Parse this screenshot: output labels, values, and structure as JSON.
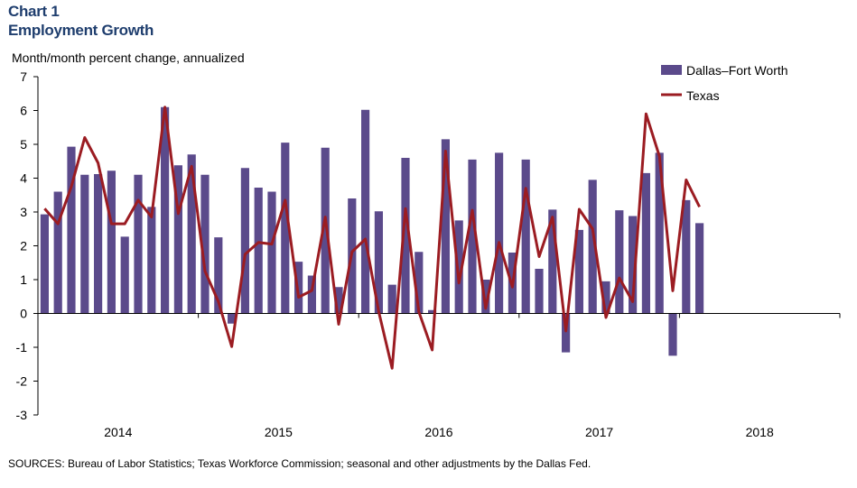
{
  "header": {
    "chart_label": "Chart 1",
    "title": "Employment Growth",
    "ylabel": "Month/month  percent change, annualized"
  },
  "footer": {
    "source": "SOURCES: Bureau of  Labor Statistics; Texas Workforce Commission; seasonal and other adjustments by the Dallas Fed."
  },
  "colors": {
    "bar": "#5b4a8b",
    "line": "#9b1c22",
    "axis": "#000000"
  },
  "chart_data": {
    "type": "bar",
    "title": "Employment Growth",
    "ylabel": "Month/month  percent change, annualized",
    "ylim": [
      -3,
      7
    ],
    "yticks": [
      -3,
      -2,
      -1,
      0,
      1,
      2,
      3,
      4,
      5,
      6,
      7
    ],
    "year_labels": [
      "2014",
      "2015",
      "2016",
      "2017",
      "2018"
    ],
    "months_total": 60,
    "legend_position": "top-right",
    "grid": false,
    "series": [
      {
        "name": "Dallas–Fort Worth",
        "kind": "bar",
        "values": [
          2.93,
          3.6,
          4.93,
          4.1,
          4.12,
          4.22,
          2.27,
          4.1,
          3.15,
          6.1,
          4.38,
          4.7,
          4.1,
          2.25,
          -0.3,
          4.3,
          3.72,
          3.6,
          5.05,
          1.53,
          1.12,
          4.9,
          0.78,
          3.4,
          6.02,
          3.02,
          0.85,
          4.6,
          1.82,
          0.1,
          5.15,
          2.75,
          4.55,
          1.0,
          4.75,
          1.8,
          4.55,
          1.32,
          3.07,
          -1.15,
          2.47,
          3.95,
          0.95,
          3.05,
          2.88,
          4.15,
          4.75,
          -1.25,
          3.35,
          2.67
        ]
      },
      {
        "name": "Texas",
        "kind": "line",
        "values": [
          3.1,
          2.65,
          3.75,
          5.2,
          4.45,
          2.65,
          2.65,
          3.35,
          2.85,
          6.1,
          2.95,
          4.35,
          1.25,
          0.35,
          -0.98,
          1.75,
          2.1,
          2.05,
          3.35,
          0.48,
          0.68,
          2.85,
          -0.32,
          1.82,
          2.2,
          0.05,
          -1.62,
          3.1,
          0.05,
          -1.08,
          4.8,
          0.9,
          3.05,
          0.15,
          2.1,
          0.78,
          3.7,
          1.68,
          2.85,
          -0.52,
          3.08,
          2.5,
          -0.12,
          1.05,
          0.35,
          5.9,
          4.65,
          0.67,
          3.95,
          3.15
        ]
      }
    ]
  }
}
